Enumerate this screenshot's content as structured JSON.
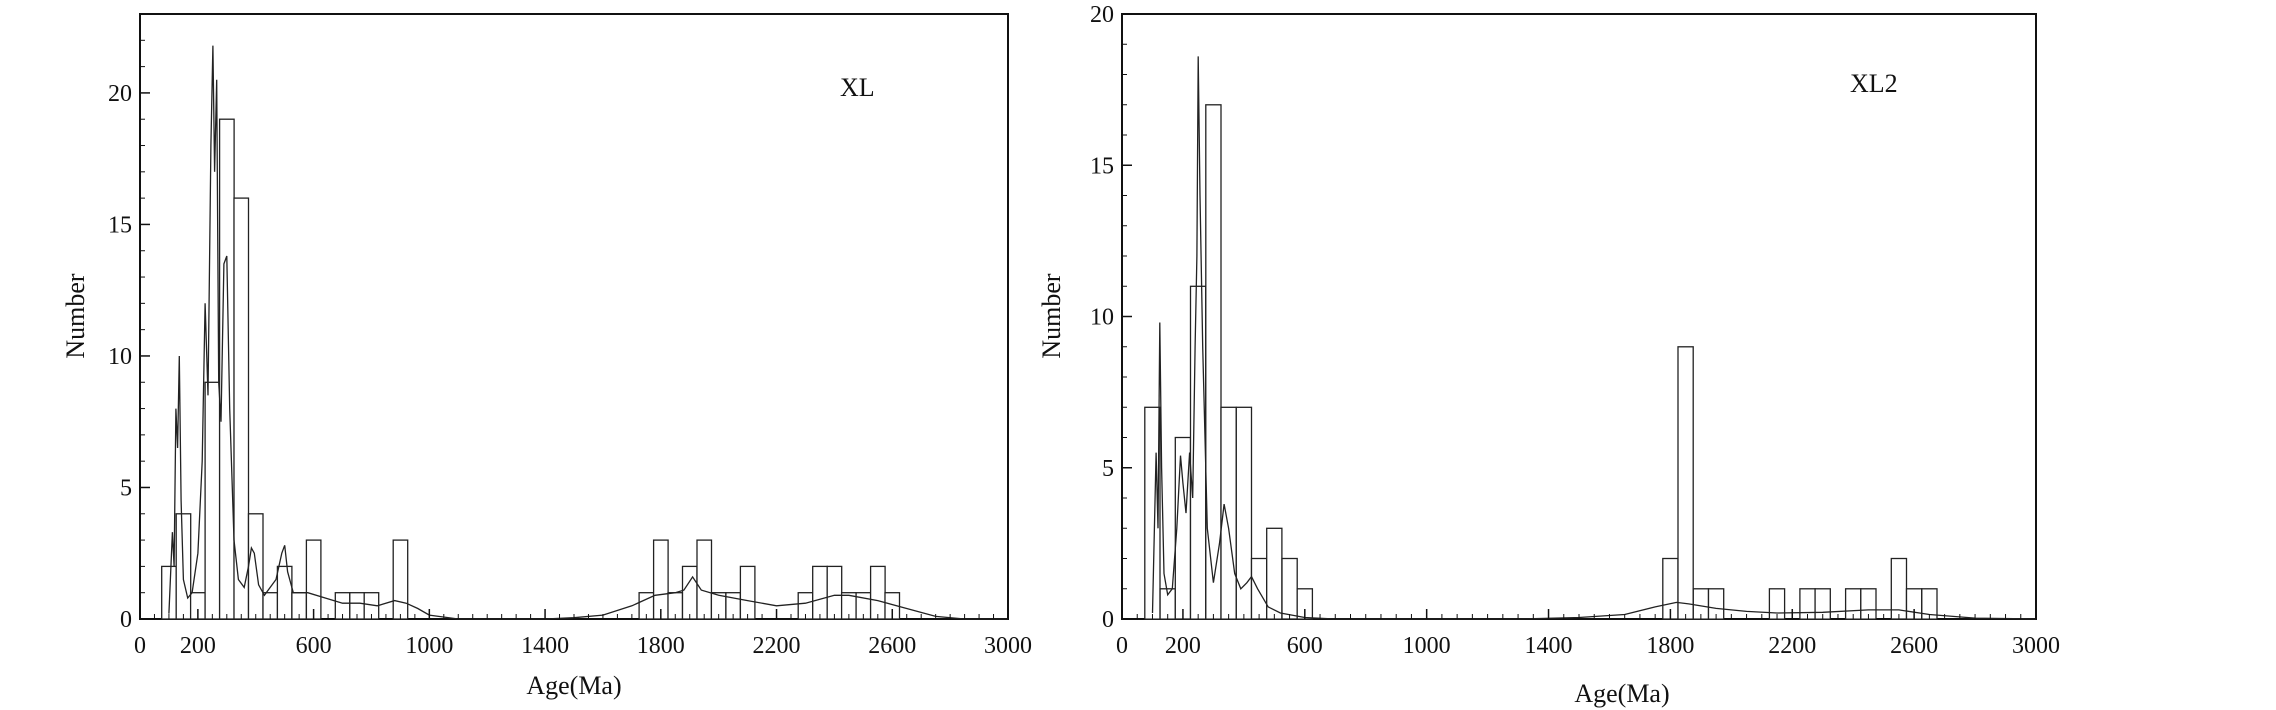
{
  "chart_data": [
    {
      "type": "bar",
      "panel_label": "XL",
      "xlabel": "Age(Ma)",
      "ylabel": "Number",
      "xlim": [
        0,
        3000
      ],
      "ylim": [
        0,
        23
      ],
      "xticks": [
        0,
        200,
        600,
        1000,
        1400,
        1800,
        2200,
        2600,
        3000
      ],
      "yticks": [
        0,
        5,
        10,
        15,
        20
      ],
      "bin_width": 50,
      "grid": false,
      "histogram": [
        {
          "x": 100,
          "count": 2
        },
        {
          "x": 150,
          "count": 4
        },
        {
          "x": 200,
          "count": 1
        },
        {
          "x": 250,
          "count": 9
        },
        {
          "x": 300,
          "count": 19
        },
        {
          "x": 350,
          "count": 16
        },
        {
          "x": 400,
          "count": 4
        },
        {
          "x": 450,
          "count": 1
        },
        {
          "x": 500,
          "count": 2
        },
        {
          "x": 550,
          "count": 1
        },
        {
          "x": 600,
          "count": 3
        },
        {
          "x": 700,
          "count": 1
        },
        {
          "x": 750,
          "count": 1
        },
        {
          "x": 800,
          "count": 1
        },
        {
          "x": 900,
          "count": 3
        },
        {
          "x": 1750,
          "count": 1
        },
        {
          "x": 1800,
          "count": 3
        },
        {
          "x": 1850,
          "count": 1
        },
        {
          "x": 1900,
          "count": 2
        },
        {
          "x": 1950,
          "count": 3
        },
        {
          "x": 2000,
          "count": 1
        },
        {
          "x": 2050,
          "count": 1
        },
        {
          "x": 2100,
          "count": 2
        },
        {
          "x": 2300,
          "count": 1
        },
        {
          "x": 2350,
          "count": 2
        },
        {
          "x": 2400,
          "count": 2
        },
        {
          "x": 2450,
          "count": 1
        },
        {
          "x": 2500,
          "count": 1
        },
        {
          "x": 2550,
          "count": 2
        },
        {
          "x": 2600,
          "count": 1
        }
      ],
      "density_curve": [
        [
          100,
          0.2
        ],
        [
          112,
          3.3
        ],
        [
          118,
          2.0
        ],
        [
          124,
          8.0
        ],
        [
          130,
          6.5
        ],
        [
          136,
          10.0
        ],
        [
          142,
          4.5
        ],
        [
          150,
          1.5
        ],
        [
          165,
          0.8
        ],
        [
          180,
          1.0
        ],
        [
          200,
          2.5
        ],
        [
          215,
          6.0
        ],
        [
          225,
          12.0
        ],
        [
          235,
          8.5
        ],
        [
          245,
          18.0
        ],
        [
          252,
          21.8
        ],
        [
          258,
          17.0
        ],
        [
          265,
          20.5
        ],
        [
          272,
          9.0
        ],
        [
          280,
          7.5
        ],
        [
          290,
          13.5
        ],
        [
          300,
          13.8
        ],
        [
          310,
          8.0
        ],
        [
          325,
          3.0
        ],
        [
          340,
          1.5
        ],
        [
          360,
          1.2
        ],
        [
          375,
          2.0
        ],
        [
          385,
          2.7
        ],
        [
          395,
          2.5
        ],
        [
          410,
          1.3
        ],
        [
          430,
          0.9
        ],
        [
          450,
          1.2
        ],
        [
          470,
          1.5
        ],
        [
          490,
          2.5
        ],
        [
          500,
          2.8
        ],
        [
          510,
          1.8
        ],
        [
          530,
          1.0
        ],
        [
          580,
          1.0
        ],
        [
          640,
          0.8
        ],
        [
          700,
          0.6
        ],
        [
          760,
          0.6
        ],
        [
          820,
          0.5
        ],
        [
          880,
          0.7
        ],
        [
          920,
          0.6
        ],
        [
          960,
          0.4
        ],
        [
          1000,
          0.15
        ],
        [
          1100,
          0.0
        ],
        [
          1400,
          0.0
        ],
        [
          1500,
          0.05
        ],
        [
          1600,
          0.15
        ],
        [
          1700,
          0.5
        ],
        [
          1780,
          0.9
        ],
        [
          1850,
          1.0
        ],
        [
          1880,
          1.1
        ],
        [
          1910,
          1.6
        ],
        [
          1940,
          1.1
        ],
        [
          2000,
          0.9
        ],
        [
          2100,
          0.7
        ],
        [
          2200,
          0.5
        ],
        [
          2300,
          0.6
        ],
        [
          2400,
          0.9
        ],
        [
          2450,
          0.9
        ],
        [
          2550,
          0.7
        ],
        [
          2650,
          0.4
        ],
        [
          2750,
          0.1
        ],
        [
          2850,
          0.0
        ],
        [
          3000,
          0.0
        ]
      ]
    },
    {
      "type": "bar",
      "panel_label": "XL2",
      "xlabel": "Age(Ma)",
      "ylabel": "Number",
      "xlim": [
        0,
        3000
      ],
      "ylim": [
        0,
        20
      ],
      "xticks": [
        0,
        200,
        600,
        1000,
        1400,
        1800,
        2200,
        2600,
        3000
      ],
      "yticks": [
        0,
        5,
        10,
        15,
        20
      ],
      "bin_width": 50,
      "grid": false,
      "histogram": [
        {
          "x": 100,
          "count": 7
        },
        {
          "x": 150,
          "count": 1
        },
        {
          "x": 200,
          "count": 6
        },
        {
          "x": 250,
          "count": 11
        },
        {
          "x": 300,
          "count": 17
        },
        {
          "x": 350,
          "count": 7
        },
        {
          "x": 400,
          "count": 7
        },
        {
          "x": 450,
          "count": 2
        },
        {
          "x": 500,
          "count": 3
        },
        {
          "x": 550,
          "count": 2
        },
        {
          "x": 600,
          "count": 1
        },
        {
          "x": 1800,
          "count": 2
        },
        {
          "x": 1850,
          "count": 9
        },
        {
          "x": 1900,
          "count": 1
        },
        {
          "x": 1950,
          "count": 1
        },
        {
          "x": 2150,
          "count": 1
        },
        {
          "x": 2250,
          "count": 1
        },
        {
          "x": 2300,
          "count": 1
        },
        {
          "x": 2400,
          "count": 1
        },
        {
          "x": 2450,
          "count": 1
        },
        {
          "x": 2550,
          "count": 2
        },
        {
          "x": 2600,
          "count": 1
        },
        {
          "x": 2650,
          "count": 1
        }
      ],
      "density_curve": [
        [
          100,
          0.2
        ],
        [
          112,
          5.5
        ],
        [
          118,
          3.0
        ],
        [
          124,
          9.8
        ],
        [
          130,
          5.0
        ],
        [
          138,
          1.5
        ],
        [
          150,
          0.8
        ],
        [
          165,
          1.0
        ],
        [
          180,
          3.0
        ],
        [
          192,
          5.4
        ],
        [
          200,
          4.5
        ],
        [
          210,
          3.5
        ],
        [
          222,
          5.5
        ],
        [
          232,
          4.0
        ],
        [
          240,
          9.0
        ],
        [
          246,
          12.0
        ],
        [
          250,
          18.6
        ],
        [
          256,
          14.0
        ],
        [
          265,
          9.0
        ],
        [
          280,
          3.0
        ],
        [
          300,
          1.2
        ],
        [
          320,
          2.5
        ],
        [
          335,
          3.8
        ],
        [
          350,
          3.0
        ],
        [
          370,
          1.5
        ],
        [
          390,
          1.0
        ],
        [
          410,
          1.2
        ],
        [
          425,
          1.4
        ],
        [
          445,
          1.0
        ],
        [
          480,
          0.4
        ],
        [
          520,
          0.2
        ],
        [
          600,
          0.05
        ],
        [
          700,
          0.0
        ],
        [
          1300,
          0.0
        ],
        [
          1500,
          0.05
        ],
        [
          1650,
          0.15
        ],
        [
          1750,
          0.4
        ],
        [
          1820,
          0.55
        ],
        [
          1860,
          0.5
        ],
        [
          1950,
          0.35
        ],
        [
          2050,
          0.25
        ],
        [
          2150,
          0.2
        ],
        [
          2300,
          0.22
        ],
        [
          2450,
          0.3
        ],
        [
          2550,
          0.3
        ],
        [
          2650,
          0.15
        ],
        [
          2800,
          0.03
        ],
        [
          3000,
          0.0
        ]
      ]
    }
  ]
}
